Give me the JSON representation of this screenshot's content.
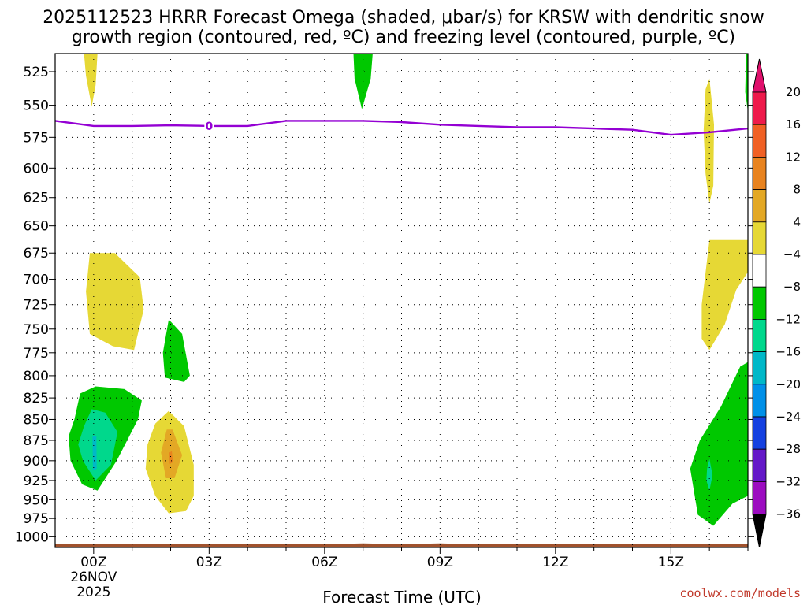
{
  "chart_data": {
    "type": "heatmap",
    "title_line1": "2025112523 HRRR Forecast Omega (shaded, μbar/s) for KRSW with dendritic snow",
    "title_line2": "growth region (contoured, red, ºC) and freezing level (contoured, purple, ºC)",
    "xlabel": "Forecast Time (UTC)",
    "x_ticks": [
      {
        "hour": 0,
        "label": "00Z",
        "sub1": "26NOV",
        "sub2": "2025"
      },
      {
        "hour": 3,
        "label": "03Z",
        "sub1": "",
        "sub2": ""
      },
      {
        "hour": 6,
        "label": "06Z",
        "sub1": "",
        "sub2": ""
      },
      {
        "hour": 9,
        "label": "09Z",
        "sub1": "",
        "sub2": ""
      },
      {
        "hour": 12,
        "label": "12Z",
        "sub1": "",
        "sub2": ""
      },
      {
        "hour": 15,
        "label": "15Z",
        "sub1": "",
        "sub2": ""
      }
    ],
    "xlim": [
      -1,
      17
    ],
    "y_ticks": [
      525,
      550,
      575,
      600,
      625,
      650,
      675,
      700,
      725,
      750,
      775,
      800,
      825,
      850,
      875,
      900,
      925,
      950,
      975,
      1000
    ],
    "ylim_hpa": [
      512,
      1015
    ],
    "y_scale": "log",
    "grid": "dotted",
    "colorbar_labels": [
      "20",
      "16",
      "12",
      "8",
      "4",
      "−4",
      "−8",
      "−12",
      "−16",
      "−20",
      "−24",
      "−28",
      "−32",
      "−36"
    ],
    "colorbar_colors": [
      "#ee1a4b",
      "#f06024",
      "#e8831f",
      "#e3a825",
      "#e6d835",
      "#ffffff",
      "#00c800",
      "#00d88c",
      "#00b8c8",
      "#0090e8",
      "#1440e0",
      "#6418c8",
      "#9c0cc0",
      "#a8a8a8"
    ],
    "colorbar_top_arrow": "#e0106c",
    "colorbar_bottom_arrow": "#000000",
    "freezing_level": {
      "label": "0",
      "color": "#9400d3",
      "points": [
        [
          -1,
          562
        ],
        [
          0,
          566
        ],
        [
          1,
          566
        ],
        [
          2,
          565.5
        ],
        [
          3,
          566
        ],
        [
          4,
          566
        ],
        [
          5,
          562
        ],
        [
          6,
          562
        ],
        [
          7,
          562
        ],
        [
          8,
          563
        ],
        [
          9,
          565
        ],
        [
          10,
          566
        ],
        [
          11,
          567
        ],
        [
          12,
          567
        ],
        [
          13,
          568
        ],
        [
          14,
          569
        ],
        [
          15,
          573
        ],
        [
          16,
          571
        ],
        [
          17,
          568
        ]
      ]
    },
    "terrain_color": "#a0522d",
    "omega_regions": [
      {
        "value": 4,
        "color": "#e6d835",
        "points": [
          [
            -0.25,
            512
          ],
          [
            0.1,
            512
          ],
          [
            0.05,
            535
          ],
          [
            -0.05,
            551
          ],
          [
            -0.2,
            528
          ]
        ]
      },
      {
        "value": -4,
        "color": "#00c800",
        "points": [
          [
            6.75,
            512
          ],
          [
            7.25,
            512
          ],
          [
            7.2,
            530
          ],
          [
            6.97,
            553
          ],
          [
            6.78,
            530
          ]
        ]
      },
      {
        "value": 4,
        "color": "#e6d835",
        "points": [
          [
            -0.1,
            675
          ],
          [
            0.55,
            675
          ],
          [
            1.2,
            698
          ],
          [
            1.3,
            730
          ],
          [
            1.05,
            772
          ],
          [
            0.5,
            768
          ],
          [
            -0.1,
            755
          ],
          [
            -0.2,
            712
          ]
        ]
      },
      {
        "value": -4,
        "color": "#00c800",
        "points": [
          [
            1.95,
            740
          ],
          [
            2.3,
            755
          ],
          [
            2.5,
            800
          ],
          [
            2.35,
            807
          ],
          [
            1.85,
            802
          ],
          [
            1.8,
            775
          ]
        ]
      },
      {
        "value": -4,
        "color": "#00c800",
        "points": [
          [
            -0.5,
            850
          ],
          [
            -0.35,
            820
          ],
          [
            0.05,
            812
          ],
          [
            0.8,
            815
          ],
          [
            1.25,
            828
          ],
          [
            1.15,
            850
          ],
          [
            0.6,
            900
          ],
          [
            0.1,
            938
          ],
          [
            -0.3,
            930
          ],
          [
            -0.6,
            900
          ],
          [
            -0.65,
            870
          ]
        ]
      },
      {
        "value": -8,
        "color": "#00d88c",
        "points": [
          [
            -0.25,
            858
          ],
          [
            -0.05,
            838
          ],
          [
            0.3,
            842
          ],
          [
            0.62,
            865
          ],
          [
            0.45,
            905
          ],
          [
            0.05,
            925
          ],
          [
            -0.28,
            900
          ],
          [
            -0.4,
            880
          ]
        ]
      },
      {
        "value": -12,
        "color": "#00b8c8",
        "points": [
          [
            -0.03,
            870
          ],
          [
            0.07,
            870
          ],
          [
            0.08,
            910
          ],
          [
            -0.02,
            912
          ]
        ]
      },
      {
        "value": 4,
        "color": "#e6d835",
        "points": [
          [
            1.4,
            880
          ],
          [
            1.6,
            855
          ],
          [
            1.95,
            840
          ],
          [
            2.35,
            858
          ],
          [
            2.6,
            905
          ],
          [
            2.6,
            945
          ],
          [
            2.4,
            965
          ],
          [
            1.95,
            968
          ],
          [
            1.6,
            945
          ],
          [
            1.35,
            910
          ]
        ]
      },
      {
        "value": 8,
        "color": "#e3a825",
        "points": [
          [
            1.75,
            890
          ],
          [
            1.9,
            862
          ],
          [
            2.05,
            862
          ],
          [
            2.3,
            893
          ],
          [
            2.1,
            922
          ],
          [
            1.88,
            922
          ]
        ]
      },
      {
        "value": 12,
        "color": "#e8831f",
        "points": [
          [
            1.97,
            890
          ],
          [
            2.03,
            888
          ],
          [
            2.06,
            902
          ],
          [
            1.98,
            904
          ]
        ]
      },
      {
        "value": 4,
        "color": "#e6d835",
        "points": [
          [
            15.9,
            538
          ],
          [
            16.0,
            530
          ],
          [
            16.12,
            565
          ],
          [
            16.1,
            615
          ],
          [
            16.0,
            630
          ],
          [
            15.9,
            605
          ],
          [
            15.85,
            570
          ]
        ]
      },
      {
        "value": 4,
        "color": "#e6d835",
        "points": [
          [
            16.0,
            663
          ],
          [
            17.0,
            663
          ],
          [
            17.0,
            693
          ],
          [
            16.7,
            710
          ],
          [
            16.4,
            745
          ],
          [
            16.0,
            772
          ],
          [
            15.8,
            760
          ],
          [
            15.8,
            725
          ]
        ]
      },
      {
        "value": -4,
        "color": "#00c800",
        "points": [
          [
            16.95,
            512
          ],
          [
            17.0,
            512
          ],
          [
            17.0,
            555
          ],
          [
            16.93,
            540
          ]
        ]
      },
      {
        "value": -4,
        "color": "#00c800",
        "points": [
          [
            17.0,
            785
          ],
          [
            17.0,
            945
          ],
          [
            16.6,
            955
          ],
          [
            16.1,
            985
          ],
          [
            15.7,
            970
          ],
          [
            15.5,
            910
          ],
          [
            15.75,
            875
          ],
          [
            16.3,
            835
          ],
          [
            16.8,
            790
          ]
        ]
      },
      {
        "value": -8,
        "color": "#00d88c",
        "points": [
          [
            15.94,
            910
          ],
          [
            16.0,
            898
          ],
          [
            16.08,
            918
          ],
          [
            16.0,
            938
          ],
          [
            15.92,
            925
          ]
        ]
      }
    ]
  },
  "credit": "coolwx.com/models"
}
